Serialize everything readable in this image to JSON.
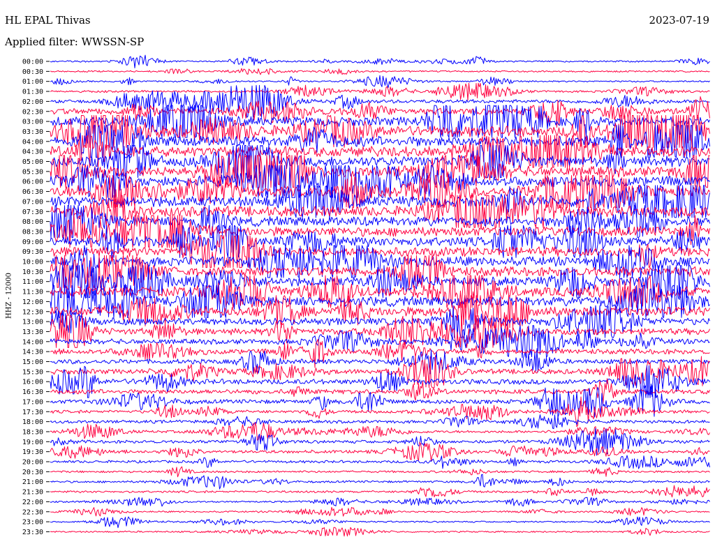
{
  "header": {
    "station": "HL EPAL Thivas",
    "date": "2023-07-19",
    "filter": "Applied filter: WWSSN-SP"
  },
  "side_label": "HHZ - 12000",
  "chart_data": {
    "type": "line",
    "title": "HL EPAL Thivas",
    "subtitle": "Applied filter: WWSSN-SP",
    "ylabel": "HHZ - 12000",
    "xlabel": "",
    "grid": false,
    "colors": {
      "even": "#0000ff",
      "odd": "#ff0040"
    },
    "rows": [
      {
        "label": "00:00",
        "amplitude": 0.15
      },
      {
        "label": "00:30",
        "amplitude": 0.15
      },
      {
        "label": "01:00",
        "amplitude": 0.15
      },
      {
        "label": "01:30",
        "amplitude": 0.2
      },
      {
        "label": "02:00",
        "amplitude": 0.35
      },
      {
        "label": "02:30",
        "amplitude": 0.6
      },
      {
        "label": "03:00",
        "amplitude": 0.9
      },
      {
        "label": "03:30",
        "amplitude": 1.0
      },
      {
        "label": "04:00",
        "amplitude": 1.0
      },
      {
        "label": "04:30",
        "amplitude": 1.0
      },
      {
        "label": "05:00",
        "amplitude": 1.0
      },
      {
        "label": "05:30",
        "amplitude": 1.0
      },
      {
        "label": "06:00",
        "amplitude": 1.0
      },
      {
        "label": "06:30",
        "amplitude": 1.0
      },
      {
        "label": "07:00",
        "amplitude": 1.0
      },
      {
        "label": "07:30",
        "amplitude": 1.0
      },
      {
        "label": "08:00",
        "amplitude": 0.9
      },
      {
        "label": "08:30",
        "amplitude": 0.9
      },
      {
        "label": "09:00",
        "amplitude": 0.9
      },
      {
        "label": "09:30",
        "amplitude": 0.9
      },
      {
        "label": "10:00",
        "amplitude": 0.9
      },
      {
        "label": "10:30",
        "amplitude": 0.9
      },
      {
        "label": "11:00",
        "amplitude": 0.9
      },
      {
        "label": "11:30",
        "amplitude": 0.9
      },
      {
        "label": "12:00",
        "amplitude": 0.9
      },
      {
        "label": "12:30",
        "amplitude": 0.9
      },
      {
        "label": "13:00",
        "amplitude": 0.7
      },
      {
        "label": "13:30",
        "amplitude": 0.6
      },
      {
        "label": "14:00",
        "amplitude": 0.5
      },
      {
        "label": "14:30",
        "amplitude": 0.5
      },
      {
        "label": "15:00",
        "amplitude": 0.45
      },
      {
        "label": "15:30",
        "amplitude": 0.5
      },
      {
        "label": "16:00",
        "amplitude": 0.5
      },
      {
        "label": "16:30",
        "amplitude": 0.45
      },
      {
        "label": "17:00",
        "amplitude": 0.4
      },
      {
        "label": "17:30",
        "amplitude": 0.3
      },
      {
        "label": "18:00",
        "amplitude": 0.3
      },
      {
        "label": "18:30",
        "amplitude": 0.25
      },
      {
        "label": "19:00",
        "amplitude": 0.3
      },
      {
        "label": "19:30",
        "amplitude": 0.3
      },
      {
        "label": "20:00",
        "amplitude": 0.25
      },
      {
        "label": "20:30",
        "amplitude": 0.2
      },
      {
        "label": "21:00",
        "amplitude": 0.2
      },
      {
        "label": "21:30",
        "amplitude": 0.2
      },
      {
        "label": "22:00",
        "amplitude": 0.15
      },
      {
        "label": "22:30",
        "amplitude": 0.15
      },
      {
        "label": "23:00",
        "amplitude": 0.15
      },
      {
        "label": "23:30",
        "amplitude": 0.15
      }
    ]
  }
}
